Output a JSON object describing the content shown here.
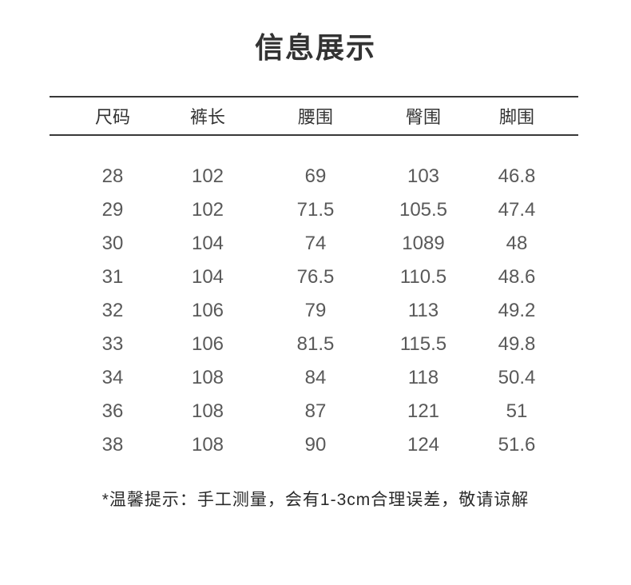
{
  "page": {
    "title": "信息展示",
    "footnote": "*温馨提示：手工测量，会有1-3cm合理误差，敬请谅解"
  },
  "table": {
    "columns": [
      "尺码",
      "裤长",
      "腰围",
      "臀围",
      "脚围"
    ],
    "rows": [
      [
        "28",
        "102",
        "69",
        "103",
        "46.8"
      ],
      [
        "29",
        "102",
        "71.5",
        "105.5",
        "47.4"
      ],
      [
        "30",
        "104",
        "74",
        "1089",
        "48"
      ],
      [
        "31",
        "104",
        "76.5",
        "110.5",
        "48.6"
      ],
      [
        "32",
        "106",
        "79",
        "113",
        "49.2"
      ],
      [
        "33",
        "106",
        "81.5",
        "115.5",
        "49.8"
      ],
      [
        "34",
        "108",
        "84",
        "118",
        "50.4"
      ],
      [
        "36",
        "108",
        "87",
        "121",
        "51"
      ],
      [
        "38",
        "108",
        "90",
        "124",
        "51.6"
      ]
    ]
  },
  "colors": {
    "title_text": "#333333",
    "header_text": "#333333",
    "data_text": "#595959",
    "footnote_text": "#2a2a2a",
    "rule": "#383838",
    "background": "#ffffff"
  }
}
